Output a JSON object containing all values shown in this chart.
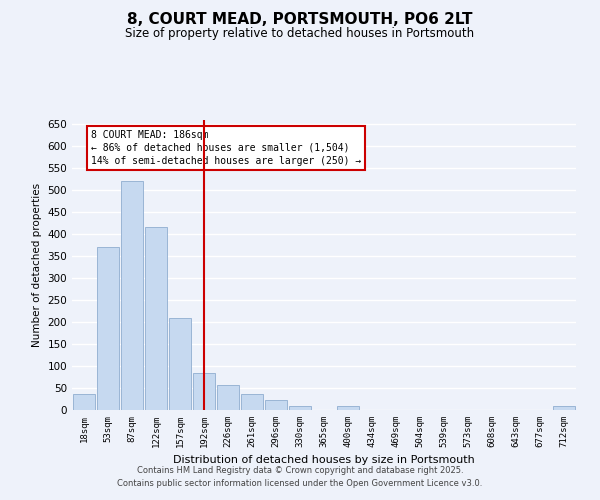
{
  "title": "8, COURT MEAD, PORTSMOUTH, PO6 2LT",
  "subtitle": "Size of property relative to detached houses in Portsmouth",
  "xlabel": "Distribution of detached houses by size in Portsmouth",
  "ylabel": "Number of detached properties",
  "bar_labels": [
    "18sqm",
    "53sqm",
    "87sqm",
    "122sqm",
    "157sqm",
    "192sqm",
    "226sqm",
    "261sqm",
    "296sqm",
    "330sqm",
    "365sqm",
    "400sqm",
    "434sqm",
    "469sqm",
    "504sqm",
    "539sqm",
    "573sqm",
    "608sqm",
    "643sqm",
    "677sqm",
    "712sqm"
  ],
  "bar_values": [
    37,
    370,
    522,
    416,
    209,
    85,
    57,
    37,
    22,
    10,
    0,
    8,
    0,
    0,
    0,
    0,
    0,
    0,
    0,
    0,
    8
  ],
  "bar_color": "#c6d9f0",
  "bar_edge_color": "#9ab5d5",
  "vline_index": 5,
  "vline_label": "8 COURT MEAD: 186sqm",
  "annotation_line1": "← 86% of detached houses are smaller (1,504)",
  "annotation_line2": "14% of semi-detached houses are larger (250) →",
  "annotation_box_color": "#ffffff",
  "annotation_box_edge": "#cc0000",
  "vline_color": "#cc0000",
  "ylim": [
    0,
    660
  ],
  "yticks": [
    0,
    50,
    100,
    150,
    200,
    250,
    300,
    350,
    400,
    450,
    500,
    550,
    600,
    650
  ],
  "background_color": "#eef2fa",
  "plot_bg_color": "#eef2fa",
  "grid_color": "#ffffff",
  "footer_line1": "Contains HM Land Registry data © Crown copyright and database right 2025.",
  "footer_line2": "Contains public sector information licensed under the Open Government Licence v3.0."
}
